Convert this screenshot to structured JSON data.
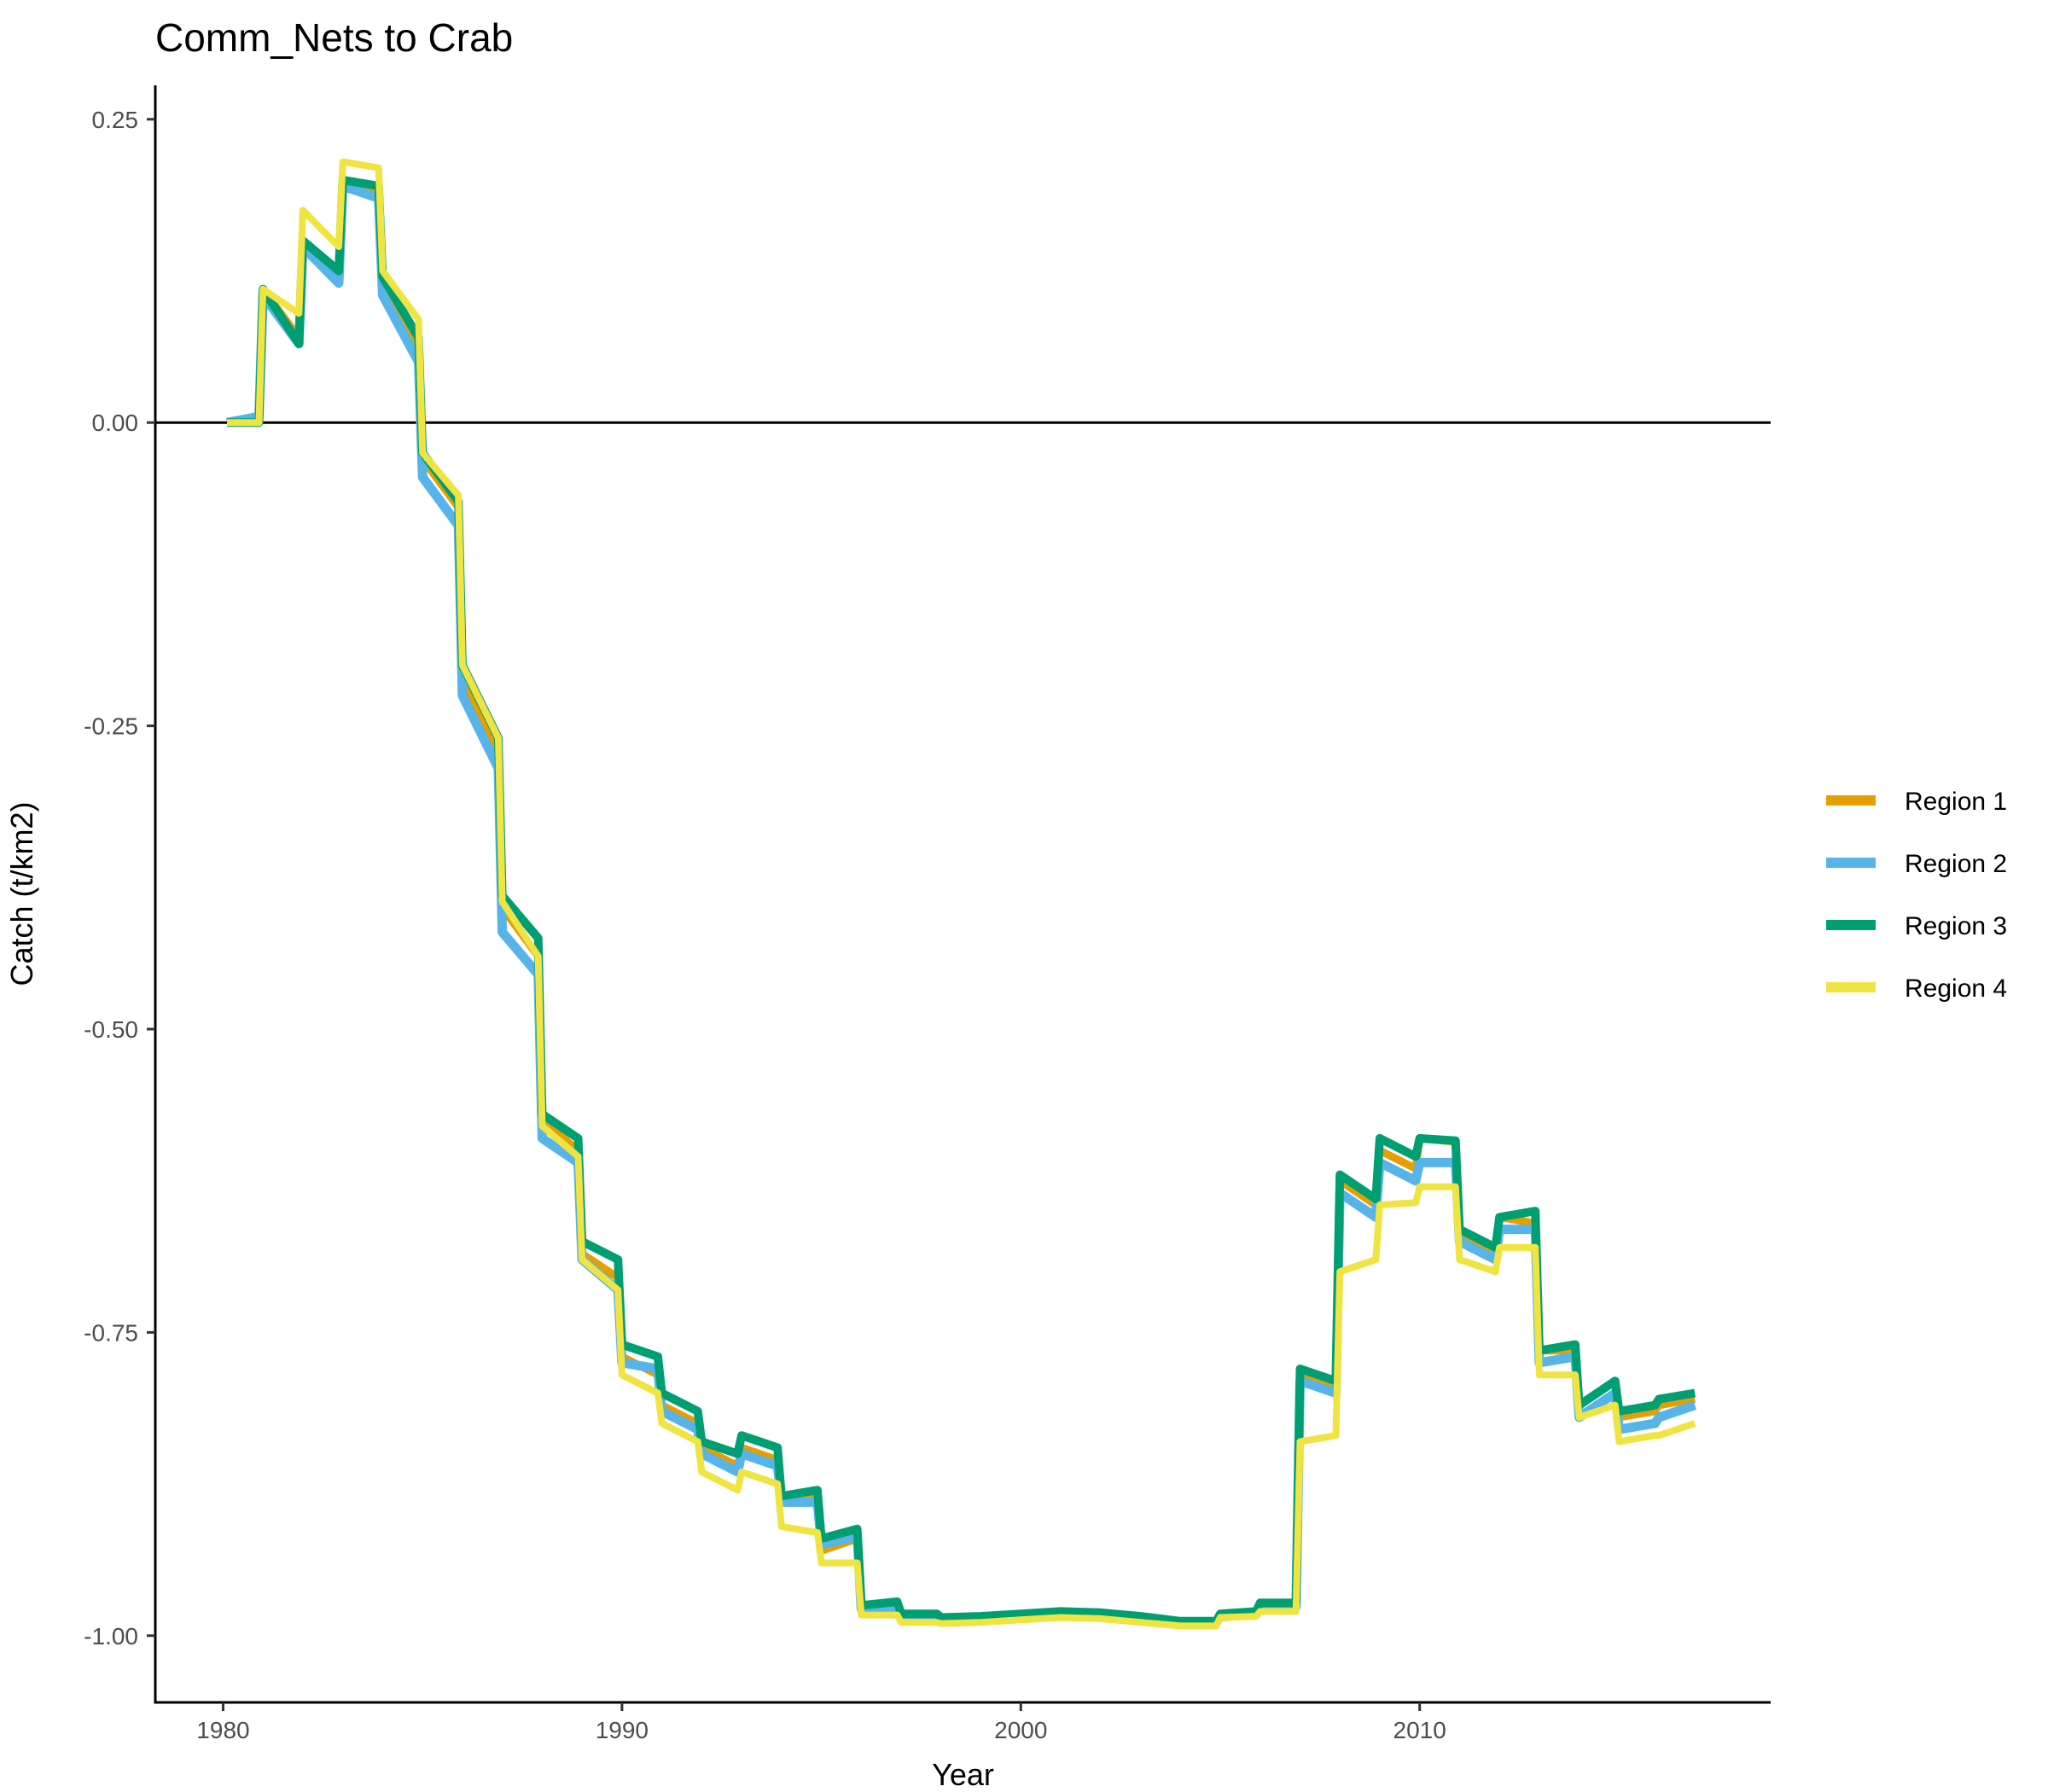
{
  "chart_data": {
    "type": "line",
    "title": "Comm_Nets to Crab",
    "xlabel": "Year",
    "ylabel": "Catch (t/km2)",
    "xlim": [
      1978.3,
      2018.8
    ],
    "ylim": [
      -1.055,
      0.278
    ],
    "x_ticks": [
      1980,
      1990,
      2000,
      2010
    ],
    "x_tick_labels": [
      "1980",
      "1990",
      "2000",
      "2010"
    ],
    "y_ticks": [
      0.25,
      0.0,
      -0.25,
      -0.5,
      -0.75,
      -1.0
    ],
    "y_tick_labels": [
      "0.25",
      "0.00",
      "-0.25",
      "-0.50",
      "-0.75",
      "-1.00"
    ],
    "hline": 0,
    "grid": false,
    "legend_position": "right",
    "series": [
      {
        "name": "Region 1",
        "color": "#E69F00",
        "points": [
          [
            1980.1,
            0.0
          ],
          [
            1980.9,
            0.0
          ],
          [
            1981.0,
            0.11
          ],
          [
            1981.9,
            0.07
          ],
          [
            1982.0,
            0.15
          ],
          [
            1982.9,
            0.125
          ],
          [
            1983.0,
            0.2
          ],
          [
            1983.9,
            0.19
          ],
          [
            1984.0,
            0.12
          ],
          [
            1984.9,
            0.06
          ],
          [
            1985.0,
            -0.03
          ],
          [
            1985.9,
            -0.07
          ],
          [
            1986.0,
            -0.21
          ],
          [
            1986.9,
            -0.27
          ],
          [
            1987.0,
            -0.4
          ],
          [
            1987.9,
            -0.44
          ],
          [
            1988.0,
            -0.575
          ],
          [
            1988.9,
            -0.6
          ],
          [
            1989.0,
            -0.685
          ],
          [
            1989.9,
            -0.705
          ],
          [
            1990.0,
            -0.77
          ],
          [
            1990.9,
            -0.785
          ],
          [
            1991.0,
            -0.81
          ],
          [
            1991.9,
            -0.825
          ],
          [
            1992.0,
            -0.845
          ],
          [
            1992.9,
            -0.86
          ],
          [
            1993.0,
            -0.845
          ],
          [
            1993.9,
            -0.855
          ],
          [
            1994.0,
            -0.89
          ],
          [
            1994.9,
            -0.885
          ],
          [
            1995.0,
            -0.93
          ],
          [
            1995.9,
            -0.92
          ],
          [
            1996.0,
            -0.98
          ],
          [
            1996.9,
            -0.978
          ],
          [
            1997.0,
            -0.985
          ],
          [
            1997.9,
            -0.985
          ],
          [
            1998.0,
            -0.988
          ],
          [
            1999.0,
            -0.987
          ],
          [
            2000.0,
            -0.985
          ],
          [
            2001.0,
            -0.983
          ],
          [
            2002.0,
            -0.984
          ],
          [
            2003.0,
            -0.987
          ],
          [
            2004.0,
            -0.99
          ],
          [
            2004.9,
            -0.99
          ],
          [
            2005.0,
            -0.985
          ],
          [
            2005.9,
            -0.983
          ],
          [
            2006.0,
            -0.977
          ],
          [
            2006.9,
            -0.977
          ],
          [
            2007.0,
            -0.785
          ],
          [
            2007.9,
            -0.795
          ],
          [
            2008.0,
            -0.625
          ],
          [
            2008.9,
            -0.645
          ],
          [
            2009.0,
            -0.6
          ],
          [
            2009.9,
            -0.615
          ],
          [
            2010.0,
            -0.59
          ],
          [
            2010.9,
            -0.593
          ],
          [
            2011.0,
            -0.67
          ],
          [
            2011.9,
            -0.685
          ],
          [
            2012.0,
            -0.655
          ],
          [
            2012.9,
            -0.66
          ],
          [
            2013.0,
            -0.765
          ],
          [
            2013.9,
            -0.765
          ],
          [
            2014.0,
            -0.81
          ],
          [
            2014.9,
            -0.79
          ],
          [
            2015.0,
            -0.82
          ],
          [
            2015.9,
            -0.815
          ],
          [
            2016.0,
            -0.81
          ],
          [
            2016.9,
            -0.805
          ]
        ]
      },
      {
        "name": "Region 2",
        "color": "#56B4E9",
        "points": [
          [
            1980.1,
            0.0
          ],
          [
            1980.9,
            0.005
          ],
          [
            1981.0,
            0.105
          ],
          [
            1981.9,
            0.065
          ],
          [
            1982.0,
            0.145
          ],
          [
            1982.9,
            0.115
          ],
          [
            1983.0,
            0.195
          ],
          [
            1983.9,
            0.185
          ],
          [
            1984.0,
            0.105
          ],
          [
            1984.9,
            0.05
          ],
          [
            1985.0,
            -0.045
          ],
          [
            1985.9,
            -0.085
          ],
          [
            1986.0,
            -0.225
          ],
          [
            1986.9,
            -0.285
          ],
          [
            1987.0,
            -0.42
          ],
          [
            1987.9,
            -0.455
          ],
          [
            1988.0,
            -0.59
          ],
          [
            1988.9,
            -0.61
          ],
          [
            1989.0,
            -0.69
          ],
          [
            1989.9,
            -0.715
          ],
          [
            1990.0,
            -0.775
          ],
          [
            1990.9,
            -0.78
          ],
          [
            1991.0,
            -0.815
          ],
          [
            1991.9,
            -0.83
          ],
          [
            1992.0,
            -0.85
          ],
          [
            1992.9,
            -0.865
          ],
          [
            1993.0,
            -0.85
          ],
          [
            1993.9,
            -0.86
          ],
          [
            1994.0,
            -0.89
          ],
          [
            1994.9,
            -0.89
          ],
          [
            1995.0,
            -0.925
          ],
          [
            1995.9,
            -0.918
          ],
          [
            1996.0,
            -0.978
          ],
          [
            1996.9,
            -0.976
          ],
          [
            1997.0,
            -0.984
          ],
          [
            1997.9,
            -0.984
          ],
          [
            1998.0,
            -0.987
          ],
          [
            1999.0,
            -0.986
          ],
          [
            2000.0,
            -0.984
          ],
          [
            2001.0,
            -0.982
          ],
          [
            2002.0,
            -0.983
          ],
          [
            2003.0,
            -0.986
          ],
          [
            2004.0,
            -0.989
          ],
          [
            2004.9,
            -0.989
          ],
          [
            2005.0,
            -0.984
          ],
          [
            2005.9,
            -0.982
          ],
          [
            2006.0,
            -0.976
          ],
          [
            2006.9,
            -0.976
          ],
          [
            2007.0,
            -0.79
          ],
          [
            2007.9,
            -0.8
          ],
          [
            2008.0,
            -0.635
          ],
          [
            2008.9,
            -0.655
          ],
          [
            2009.0,
            -0.61
          ],
          [
            2009.9,
            -0.625
          ],
          [
            2010.0,
            -0.61
          ],
          [
            2010.9,
            -0.61
          ],
          [
            2011.0,
            -0.675
          ],
          [
            2011.9,
            -0.69
          ],
          [
            2012.0,
            -0.665
          ],
          [
            2012.9,
            -0.665
          ],
          [
            2013.0,
            -0.775
          ],
          [
            2013.9,
            -0.77
          ],
          [
            2014.0,
            -0.82
          ],
          [
            2014.9,
            -0.8
          ],
          [
            2015.0,
            -0.83
          ],
          [
            2015.9,
            -0.825
          ],
          [
            2016.0,
            -0.82
          ],
          [
            2016.9,
            -0.81
          ]
        ]
      },
      {
        "name": "Region 3",
        "color": "#009E73",
        "points": [
          [
            1980.1,
            0.0
          ],
          [
            1980.9,
            0.0
          ],
          [
            1981.0,
            0.11
          ],
          [
            1981.9,
            0.065
          ],
          [
            1982.0,
            0.15
          ],
          [
            1982.9,
            0.125
          ],
          [
            1983.0,
            0.2
          ],
          [
            1983.9,
            0.195
          ],
          [
            1984.0,
            0.12
          ],
          [
            1984.9,
            0.07
          ],
          [
            1985.0,
            -0.025
          ],
          [
            1985.9,
            -0.065
          ],
          [
            1986.0,
            -0.2
          ],
          [
            1986.9,
            -0.26
          ],
          [
            1987.0,
            -0.39
          ],
          [
            1987.9,
            -0.425
          ],
          [
            1988.0,
            -0.57
          ],
          [
            1988.9,
            -0.59
          ],
          [
            1989.0,
            -0.675
          ],
          [
            1989.9,
            -0.69
          ],
          [
            1990.0,
            -0.76
          ],
          [
            1990.9,
            -0.77
          ],
          [
            1991.0,
            -0.8
          ],
          [
            1991.9,
            -0.815
          ],
          [
            1992.0,
            -0.84
          ],
          [
            1992.9,
            -0.85
          ],
          [
            1993.0,
            -0.835
          ],
          [
            1993.9,
            -0.845
          ],
          [
            1994.0,
            -0.885
          ],
          [
            1994.9,
            -0.88
          ],
          [
            1995.0,
            -0.92
          ],
          [
            1995.9,
            -0.912
          ],
          [
            1996.0,
            -0.975
          ],
          [
            1996.9,
            -0.972
          ],
          [
            1997.0,
            -0.982
          ],
          [
            1997.9,
            -0.982
          ],
          [
            1998.0,
            -0.985
          ],
          [
            1999.0,
            -0.984
          ],
          [
            2000.0,
            -0.982
          ],
          [
            2001.0,
            -0.98
          ],
          [
            2002.0,
            -0.981
          ],
          [
            2003.0,
            -0.984
          ],
          [
            2004.0,
            -0.988
          ],
          [
            2004.9,
            -0.988
          ],
          [
            2005.0,
            -0.982
          ],
          [
            2005.9,
            -0.98
          ],
          [
            2006.0,
            -0.973
          ],
          [
            2006.9,
            -0.973
          ],
          [
            2007.0,
            -0.78
          ],
          [
            2007.9,
            -0.79
          ],
          [
            2008.0,
            -0.62
          ],
          [
            2008.9,
            -0.64
          ],
          [
            2009.0,
            -0.59
          ],
          [
            2009.9,
            -0.605
          ],
          [
            2010.0,
            -0.59
          ],
          [
            2010.9,
            -0.592
          ],
          [
            2011.0,
            -0.665
          ],
          [
            2011.9,
            -0.68
          ],
          [
            2012.0,
            -0.655
          ],
          [
            2012.9,
            -0.65
          ],
          [
            2013.0,
            -0.765
          ],
          [
            2013.9,
            -0.76
          ],
          [
            2014.0,
            -0.81
          ],
          [
            2014.9,
            -0.79
          ],
          [
            2015.0,
            -0.815
          ],
          [
            2015.9,
            -0.81
          ],
          [
            2016.0,
            -0.805
          ],
          [
            2016.9,
            -0.8
          ]
        ]
      },
      {
        "name": "Region 4",
        "color": "#F0E442",
        "points": [
          [
            1980.1,
            0.0
          ],
          [
            1980.9,
            0.0
          ],
          [
            1981.0,
            0.11
          ],
          [
            1981.9,
            0.09
          ],
          [
            1982.0,
            0.175
          ],
          [
            1982.9,
            0.145
          ],
          [
            1983.0,
            0.215
          ],
          [
            1983.9,
            0.21
          ],
          [
            1984.0,
            0.125
          ],
          [
            1984.9,
            0.085
          ],
          [
            1985.0,
            -0.025
          ],
          [
            1985.9,
            -0.06
          ],
          [
            1986.0,
            -0.2
          ],
          [
            1986.9,
            -0.26
          ],
          [
            1987.0,
            -0.395
          ],
          [
            1987.9,
            -0.44
          ],
          [
            1988.0,
            -0.58
          ],
          [
            1988.9,
            -0.605
          ],
          [
            1989.0,
            -0.69
          ],
          [
            1989.9,
            -0.715
          ],
          [
            1990.0,
            -0.785
          ],
          [
            1990.9,
            -0.8
          ],
          [
            1991.0,
            -0.825
          ],
          [
            1991.9,
            -0.84
          ],
          [
            1992.0,
            -0.865
          ],
          [
            1992.9,
            -0.88
          ],
          [
            1993.0,
            -0.865
          ],
          [
            1993.9,
            -0.875
          ],
          [
            1994.0,
            -0.91
          ],
          [
            1994.9,
            -0.915
          ],
          [
            1995.0,
            -0.94
          ],
          [
            1995.9,
            -0.94
          ],
          [
            1996.0,
            -0.983
          ],
          [
            1996.9,
            -0.983
          ],
          [
            1997.0,
            -0.989
          ],
          [
            1997.9,
            -0.989
          ],
          [
            1998.0,
            -0.99
          ],
          [
            1999.0,
            -0.989
          ],
          [
            2000.0,
            -0.987
          ],
          [
            2001.0,
            -0.985
          ],
          [
            2002.0,
            -0.986
          ],
          [
            2003.0,
            -0.989
          ],
          [
            2004.0,
            -0.992
          ],
          [
            2004.9,
            -0.992
          ],
          [
            2005.0,
            -0.985
          ],
          [
            2005.9,
            -0.984
          ],
          [
            2006.0,
            -0.98
          ],
          [
            2006.9,
            -0.98
          ],
          [
            2007.0,
            -0.84
          ],
          [
            2007.9,
            -0.835
          ],
          [
            2008.0,
            -0.7
          ],
          [
            2008.9,
            -0.69
          ],
          [
            2009.0,
            -0.645
          ],
          [
            2009.9,
            -0.643
          ],
          [
            2010.0,
            -0.63
          ],
          [
            2010.9,
            -0.63
          ],
          [
            2011.0,
            -0.69
          ],
          [
            2011.9,
            -0.7
          ],
          [
            2012.0,
            -0.68
          ],
          [
            2012.9,
            -0.68
          ],
          [
            2013.0,
            -0.785
          ],
          [
            2013.9,
            -0.785
          ],
          [
            2014.0,
            -0.82
          ],
          [
            2014.9,
            -0.81
          ],
          [
            2015.0,
            -0.84
          ],
          [
            2015.9,
            -0.835
          ],
          [
            2016.0,
            -0.835
          ],
          [
            2016.9,
            -0.825
          ]
        ]
      }
    ]
  }
}
